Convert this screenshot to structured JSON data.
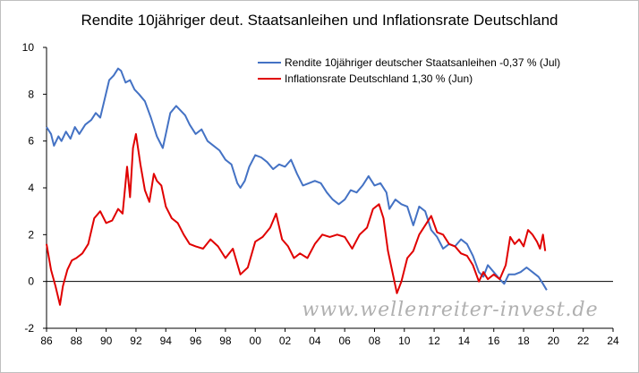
{
  "chart_data": {
    "type": "line",
    "title": "Rendite 10jähriger deut. Staatsanleihen und Inflationsrate Deutschland",
    "xlabel": "",
    "ylabel": "",
    "xlim": [
      1986,
      2024
    ],
    "ylim": [
      -2,
      10
    ],
    "x_ticks": [
      "86",
      "88",
      "90",
      "92",
      "94",
      "96",
      "98",
      "00",
      "02",
      "04",
      "06",
      "08",
      "10",
      "12",
      "14",
      "16",
      "18",
      "20",
      "22",
      "24"
    ],
    "y_ticks": [
      "10",
      "8",
      "6",
      "4",
      "2",
      "0",
      "-2"
    ],
    "grid": false,
    "legend_position": "top-right",
    "watermark": "www.wellenreiter-invest.de",
    "series": [
      {
        "name": "Rendite 10jähriger deutscher Staatsanleihen -0,37 % (Jul)",
        "color": "#4472c4",
        "x": [
          1986.0,
          1986.3,
          1986.5,
          1986.8,
          1987.0,
          1987.3,
          1987.6,
          1987.9,
          1988.2,
          1988.6,
          1989.0,
          1989.3,
          1989.6,
          1989.9,
          1990.2,
          1990.5,
          1990.8,
          1991.0,
          1991.3,
          1991.6,
          1991.9,
          1992.2,
          1992.6,
          1993.0,
          1993.4,
          1993.8,
          1994.0,
          1994.3,
          1994.7,
          1995.0,
          1995.3,
          1995.6,
          1996.0,
          1996.4,
          1996.8,
          1997.2,
          1997.6,
          1998.0,
          1998.4,
          1998.8,
          1999.0,
          1999.3,
          1999.6,
          2000.0,
          2000.4,
          2000.8,
          2001.2,
          2001.6,
          2002.0,
          2002.4,
          2002.8,
          2003.2,
          2003.6,
          2004.0,
          2004.4,
          2004.8,
          2005.2,
          2005.6,
          2006.0,
          2006.4,
          2006.8,
          2007.2,
          2007.6,
          2008.0,
          2008.4,
          2008.8,
          2009.0,
          2009.4,
          2009.8,
          2010.2,
          2010.6,
          2011.0,
          2011.4,
          2011.8,
          2012.2,
          2012.6,
          2013.0,
          2013.4,
          2013.8,
          2014.2,
          2014.6,
          2015.0,
          2015.3,
          2015.6,
          2016.0,
          2016.4,
          2016.7,
          2017.0,
          2017.4,
          2017.8,
          2018.2,
          2018.6,
          2019.0,
          2019.3,
          2019.55
        ],
        "values": [
          6.6,
          6.3,
          5.8,
          6.2,
          6.0,
          6.4,
          6.1,
          6.6,
          6.3,
          6.7,
          6.9,
          7.2,
          7.0,
          7.8,
          8.6,
          8.8,
          9.1,
          9.0,
          8.5,
          8.6,
          8.2,
          8.0,
          7.7,
          7.0,
          6.2,
          5.7,
          6.3,
          7.2,
          7.5,
          7.3,
          7.1,
          6.7,
          6.3,
          6.5,
          6.0,
          5.8,
          5.6,
          5.2,
          5.0,
          4.2,
          4.0,
          4.3,
          4.9,
          5.4,
          5.3,
          5.1,
          4.8,
          5.0,
          4.9,
          5.2,
          4.6,
          4.1,
          4.2,
          4.3,
          4.2,
          3.8,
          3.5,
          3.3,
          3.5,
          3.9,
          3.8,
          4.1,
          4.5,
          4.1,
          4.2,
          3.8,
          3.1,
          3.5,
          3.3,
          3.2,
          2.4,
          3.2,
          3.0,
          2.2,
          1.9,
          1.4,
          1.6,
          1.5,
          1.8,
          1.6,
          1.1,
          0.4,
          0.2,
          0.7,
          0.4,
          0.1,
          -0.1,
          0.3,
          0.3,
          0.4,
          0.6,
          0.4,
          0.2,
          -0.1,
          -0.37
        ]
      },
      {
        "name": "Inflationsrate Deutschland 1,30 % (Jun)",
        "color": "#e00000",
        "x": [
          1986.0,
          1986.3,
          1986.6,
          1986.9,
          1987.1,
          1987.4,
          1987.7,
          1988.0,
          1988.4,
          1988.8,
          1989.2,
          1989.6,
          1990.0,
          1990.4,
          1990.8,
          1991.1,
          1991.4,
          1991.6,
          1991.8,
          1992.0,
          1992.3,
          1992.6,
          1992.9,
          1993.2,
          1993.4,
          1993.7,
          1994.0,
          1994.4,
          1994.8,
          1995.2,
          1995.6,
          1996.0,
          1996.5,
          1997.0,
          1997.5,
          1998.0,
          1998.5,
          1999.0,
          1999.5,
          2000.0,
          2000.5,
          2001.0,
          2001.4,
          2001.8,
          2002.2,
          2002.6,
          2003.0,
          2003.5,
          2004.0,
          2004.5,
          2005.0,
          2005.5,
          2006.0,
          2006.5,
          2007.0,
          2007.5,
          2007.9,
          2008.3,
          2008.6,
          2008.9,
          2009.2,
          2009.5,
          2009.8,
          2010.2,
          2010.6,
          2011.0,
          2011.4,
          2011.8,
          2012.2,
          2012.6,
          2013.0,
          2013.4,
          2013.8,
          2014.2,
          2014.6,
          2015.0,
          2015.3,
          2015.6,
          2016.0,
          2016.4,
          2016.8,
          2017.1,
          2017.4,
          2017.7,
          2018.0,
          2018.3,
          2018.6,
          2018.9,
          2019.1,
          2019.3,
          2019.45
        ],
        "values": [
          1.6,
          0.5,
          -0.2,
          -1.0,
          -0.2,
          0.5,
          0.9,
          1.0,
          1.2,
          1.6,
          2.7,
          3.0,
          2.5,
          2.6,
          3.1,
          2.9,
          4.9,
          3.6,
          5.7,
          6.3,
          5.0,
          3.9,
          3.4,
          4.6,
          4.3,
          4.1,
          3.2,
          2.7,
          2.5,
          2.0,
          1.6,
          1.5,
          1.4,
          1.8,
          1.5,
          1.0,
          1.4,
          0.3,
          0.6,
          1.7,
          1.9,
          2.3,
          2.9,
          1.8,
          1.5,
          1.0,
          1.2,
          1.0,
          1.6,
          2.0,
          1.9,
          2.0,
          1.9,
          1.4,
          2.0,
          2.3,
          3.1,
          3.3,
          2.7,
          1.3,
          0.4,
          -0.5,
          0.0,
          1.0,
          1.3,
          2.0,
          2.4,
          2.8,
          2.1,
          2.0,
          1.6,
          1.5,
          1.2,
          1.1,
          0.7,
          0.0,
          0.4,
          0.1,
          0.3,
          0.1,
          0.7,
          1.9,
          1.6,
          1.8,
          1.5,
          2.2,
          2.0,
          1.7,
          1.4,
          2.0,
          1.3
        ]
      }
    ]
  }
}
